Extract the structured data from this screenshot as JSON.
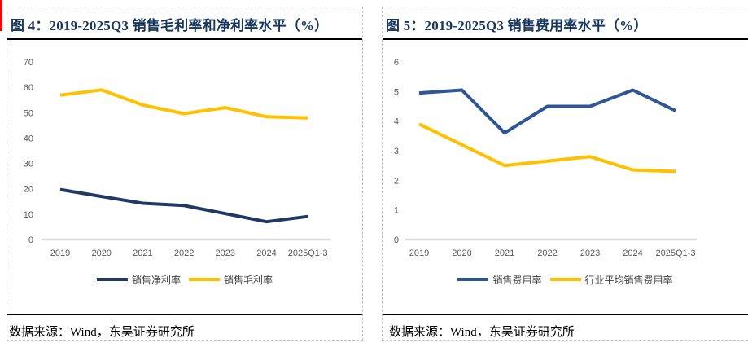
{
  "colors": {
    "title_navy": "#17365d",
    "net_margin_line": "#1f3864",
    "gross_margin_line": "#ffc000",
    "expense_ratio_line": "#2f5597",
    "industry_avg_line": "#ffc000",
    "axis_line": "#d9d9d9",
    "tick_text": "#595959",
    "dashed_border": "#bfbfbf",
    "separator_black": "#000000",
    "red_edge_mark": "#ff0000"
  },
  "chart_data": [
    {
      "type": "line",
      "title": "图 4：2019-2025Q3 销售毛利率和净利率水平（%）",
      "source": "数据来源：Wind，东吴证券研究所",
      "categories": [
        "2019",
        "2020",
        "2021",
        "2022",
        "2023",
        "2024",
        "2025Q1-3"
      ],
      "series": [
        {
          "name": "销售净利率",
          "color": "#1f3864",
          "values": [
            19.7,
            17.0,
            14.3,
            13.4,
            10.2,
            7.0,
            9.1
          ]
        },
        {
          "name": "销售毛利率",
          "color": "#ffc000",
          "values": [
            56.9,
            59.0,
            53.0,
            49.6,
            52.0,
            48.4,
            47.9
          ]
        }
      ],
      "xlabel": "",
      "ylabel": "",
      "ylim": [
        0,
        70
      ],
      "yticks": [
        0,
        10,
        20,
        30,
        40,
        50,
        60,
        70
      ],
      "grid": false,
      "legend_position": "bottom"
    },
    {
      "type": "line",
      "title": "图 5：2019-2025Q3 销售费用率水平（%）",
      "source": "数据来源：Wind，东吴证券研究所",
      "categories": [
        "2019",
        "2020",
        "2021",
        "2022",
        "2023",
        "2024",
        "2025Q1-3"
      ],
      "series": [
        {
          "name": "销售费用率",
          "color": "#2f5597",
          "values": [
            4.95,
            5.05,
            3.6,
            4.5,
            4.5,
            5.05,
            4.35
          ]
        },
        {
          "name": "行业平均销售费用率",
          "color": "#ffc000",
          "values": [
            3.9,
            3.2,
            2.5,
            2.65,
            2.8,
            2.35,
            2.3
          ]
        }
      ],
      "xlabel": "",
      "ylabel": "",
      "ylim": [
        0,
        6
      ],
      "yticks": [
        0,
        1,
        2,
        3,
        4,
        5,
        6
      ],
      "grid": false,
      "legend_position": "bottom"
    }
  ]
}
